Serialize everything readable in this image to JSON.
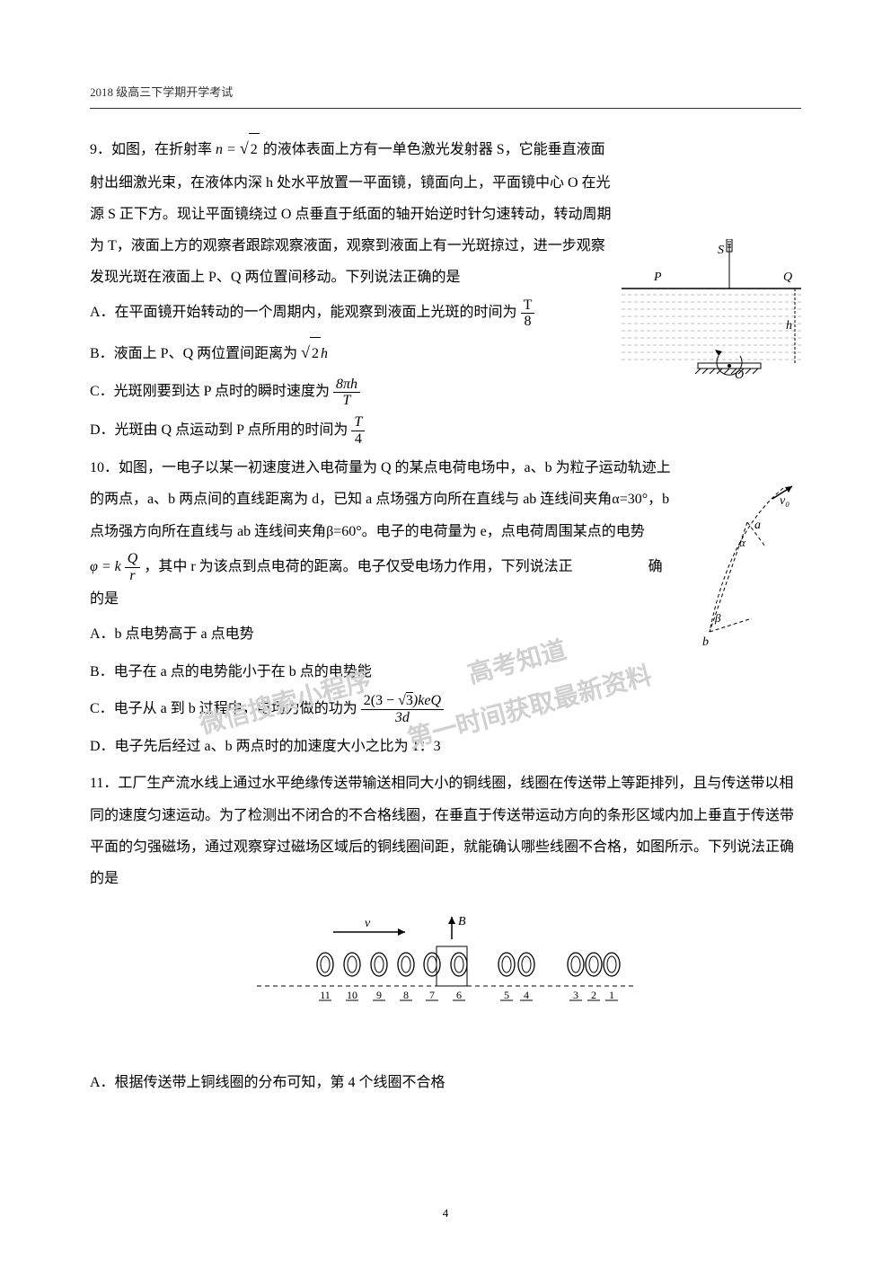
{
  "header": "2018 级高三下学期开学考试",
  "page_number": "4",
  "q9": {
    "stem_parts": [
      "9．如图，在折射率 ",
      " 的液体表面上方有一单色激光发射器 S，它能垂直液面射出细激光束，在液体内深 h 处水平放置一平面镜，镜面向上，平面镜中心 O 在光源 S 正下方。现让平面镜绕过 O 点垂直于纸面的轴开始逆时针匀速转动，转动周期为 T，液面上方的观察者跟踪观察液面，观察到液面上有一光斑掠过，进一步观察发现光斑在液面上 P、Q 两位置间移动。下列说法正确的是"
    ],
    "n_eq": "n =",
    "sqrt2": "2",
    "optA": "A．在平面镜开始转动的一个周期内，能观察到液面上光斑的时间为",
    "fracA_num": "T",
    "fracA_den": "8",
    "optB_pre": "B．液面上 P、Q 两位置间距离为",
    "optB_sqrt": "2",
    "optB_post": "h",
    "optC": "C．光斑刚要到达 P 点时的瞬时速度为",
    "fracC_num": "8πh",
    "fracC_den": "T",
    "optD": "D．光斑由 Q 点运动到 P 点所用的时间为",
    "fracD_num": "T",
    "fracD_den": "4",
    "fig": {
      "S": "S",
      "P": "P",
      "Q": "Q",
      "O": "O",
      "h": "h"
    }
  },
  "q10": {
    "stem": "10．如图，一电子以某一初速度进入电荷量为 Q 的某点电荷电场中，a、b 为粒子运动轨迹上的两点，a、b 两点间的直线距离为 d，已知 a 点场强方向所在直线与 ab 连线间夹角α=30°，b 点场强方向所在直线与 ab 连线间夹角β=60°。电子的电荷量为 e，点电荷周围某点的电势",
    "phi_pre": "φ = k",
    "phi_num": "Q",
    "phi_den": "r",
    "phi_post": "，其中 r 为该点到点电荷的距离。电子仅受电场力作用，下列说法正",
    "phi_tail": "确的是",
    "optA": "A．b 点电势高于 a 点电势",
    "optB": "B．电子在 a 点的电势能小于在 b 点的电势能",
    "optC": "C．电子从 a 到 b 过程中，电场力做的功为",
    "fracC_num_pre": "2(3 − ",
    "fracC_num_sqrt": "3",
    "fracC_num_post": ")keQ",
    "fracC_den": "3d",
    "optD": "D．电子先后经过 a、b 两点时的加速度大小之比为 1：3",
    "fig": {
      "a": "a",
      "b": "b",
      "v0": "v₀",
      "alpha": "α",
      "beta": "β"
    }
  },
  "q11": {
    "stem": "11．工厂生产流水线上通过水平绝缘传送带输送相同大小的铜线圈，线圈在传送带上等距排列，且与传送带以相同的速度匀速运动。为了检测出不闭合的不合格线圈，在垂直于传送带运动方向的条形区域内加上垂直于传送带平面的匀强磁场，通过观察穿过磁场区域后的铜线圈间距，就能确认哪些线圈不合格，如图所示。下列说法正确的是",
    "optA": "A．根据传送带上铜线圈的分布可知，第 4 个线圈不合格",
    "fig": {
      "v": "v",
      "B": "B",
      "labels": [
        "11",
        "10",
        "9",
        "8",
        "7",
        "6",
        "5",
        "4",
        "3",
        "2",
        "1"
      ]
    }
  },
  "watermark1": "微信搜索小程序",
  "watermark2": "高考知道",
  "watermark3": "第一时间获取最新资料",
  "colors": {
    "text": "#000000",
    "bg": "#ffffff",
    "watermark": "#d0d0d0",
    "line": "#333333",
    "hatch": "#999999"
  }
}
